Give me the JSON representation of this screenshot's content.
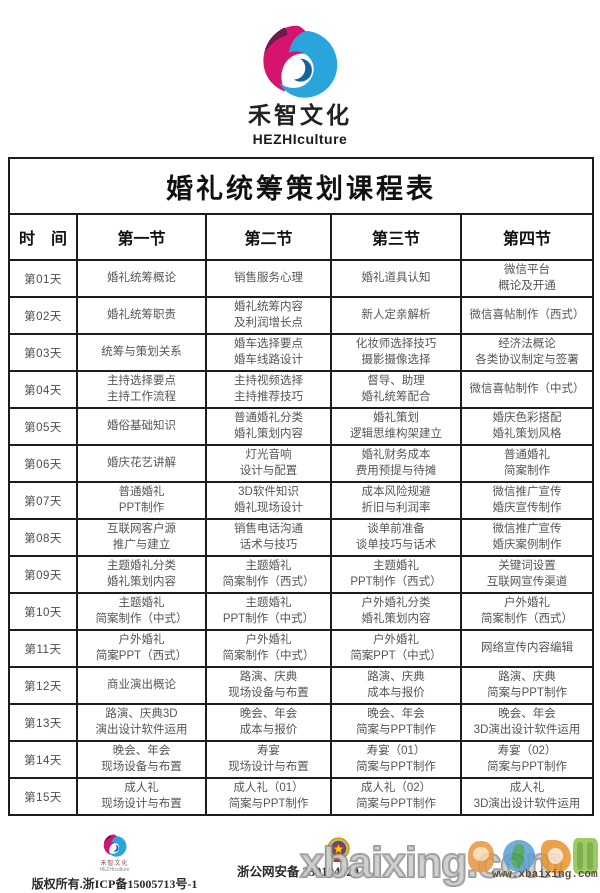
{
  "brand": {
    "name": "禾智文化",
    "latin": "HEZHIculture"
  },
  "table": {
    "title": "婚礼统筹策划课程表",
    "headers": [
      "时　间",
      "第一节",
      "第二节",
      "第三节",
      "第四节"
    ],
    "rows": [
      {
        "day": "第01天",
        "cells": [
          "婚礼统筹概论",
          "销售服务心理",
          "婚礼道具认知",
          "微信平台\n概论及开通"
        ]
      },
      {
        "day": "第02天",
        "cells": [
          "婚礼统筹职责",
          "婚礼统筹内容\n及利润增长点",
          "新人定亲解析",
          "微信喜帖制作（西式）"
        ]
      },
      {
        "day": "第03天",
        "cells": [
          "统筹与策划关系",
          "婚车选择要点\n婚车线路设计",
          "化妆师选择技巧\n摄影摄像选择",
          "经济法概论\n各类协议制定与签署"
        ]
      },
      {
        "day": "第04天",
        "cells": [
          "主持选择要点\n主持工作流程",
          "主持视频选择\n主持推荐技巧",
          "督导、助理\n婚礼统筹配合",
          "微信喜帖制作（中式）"
        ]
      },
      {
        "day": "第05天",
        "cells": [
          "婚俗基础知识",
          "普通婚礼分类\n婚礼策划内容",
          "婚礼策划\n逻辑思维构架建立",
          "婚庆色彩搭配\n婚礼策划风格"
        ]
      },
      {
        "day": "第06天",
        "cells": [
          "婚庆花艺讲解",
          "灯光音响\n设计与配置",
          "婚礼财务成本\n费用预提与待摊",
          "普通婚礼\n简案制作"
        ]
      },
      {
        "day": "第07天",
        "cells": [
          "普通婚礼\nPPT制作",
          "3D软件知识\n婚礼现场设计",
          "成本风险规避\n折旧与利润率",
          "微信推广宣传\n婚庆宣传制作"
        ]
      },
      {
        "day": "第08天",
        "cells": [
          "互联网客户源\n推广与建立",
          "销售电话沟通\n话术与技巧",
          "谈单前准备\n谈单技巧与话术",
          "微信推广宣传\n婚庆案例制作"
        ]
      },
      {
        "day": "第09天",
        "cells": [
          "主题婚礼分类\n婚礼策划内容",
          "主题婚礼\n简案制作（西式）",
          "主题婚礼\nPPT制作（西式）",
          "关键词设置\n互联网宣传渠道"
        ]
      },
      {
        "day": "第10天",
        "cells": [
          "主题婚礼\n简案制作（中式）",
          "主题婚礼\nPPT制作（中式）",
          "户外婚礼分类\n婚礼策划内容",
          "户外婚礼\n简案制作（西式）"
        ]
      },
      {
        "day": "第11天",
        "cells": [
          "户外婚礼\n简案PPT（西式）",
          "户外婚礼\n简案制作（中式）",
          "户外婚礼\n简案PPT（中式）",
          "网络宣传内容编辑"
        ]
      },
      {
        "day": "第12天",
        "cells": [
          "商业演出概论",
          "路演、庆典\n现场设备与布置",
          "路演、庆典\n成本与报价",
          "路演、庆典\n简案与PPT制作"
        ]
      },
      {
        "day": "第13天",
        "cells": [
          "路演、庆典3D\n演出设计软件运用",
          "晚会、年会\n成本与报价",
          "晚会、年会\n简案与PPT制作",
          "晚会、年会\n3D演出设计软件运用"
        ]
      },
      {
        "day": "第14天",
        "cells": [
          "晚会、年会\n现场设备与布置",
          "寿宴\n现场设计与布置",
          "寿宴（01）\n简案与PPT制作",
          "寿宴（02）\n简案与PPT制作"
        ]
      },
      {
        "day": "第15天",
        "cells": [
          "成人礼\n现场设计与布置",
          "成人礼（01）\n简案与PPT制作",
          "成人礼（02）\n简案与PPT制作",
          "成人礼\n3D演出设计软件运用"
        ]
      }
    ]
  },
  "footer": {
    "mini_brand_name": "禾智文化",
    "mini_brand_latin": "HEZHIculture",
    "copyright": "版权所有.浙ICP备15005713号-1",
    "security_text": "浙公网安备 330104020"
  },
  "watermark": {
    "big_text": "xbaixing.com",
    "url": "www.xbaixing.com"
  },
  "colors": {
    "logo_pink": "#d4146d",
    "logo_dark_pink": "#6d1b4e",
    "logo_blue": "#2aa5dc",
    "logo_dark_blue": "#15639f",
    "table_border": "#1c1c1c",
    "cell_text": "#555555"
  }
}
